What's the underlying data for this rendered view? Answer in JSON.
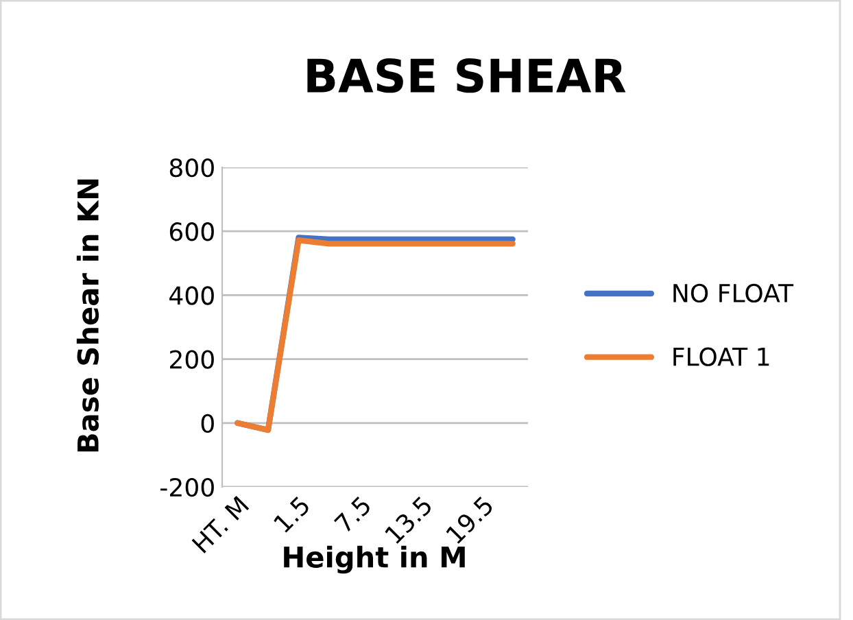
{
  "chart_data": {
    "type": "line",
    "title": "BASE SHEAR",
    "xlabel": "Height in M",
    "ylabel": "Base Shear in KN",
    "categories": [
      "HT. M",
      null,
      "1.5",
      null,
      "7.5",
      null,
      "13.5",
      null,
      "19.5",
      null
    ],
    "series": [
      {
        "name": "NO FLOAT",
        "color": "#4472c4",
        "values": [
          0,
          -22,
          580,
          575,
          575,
          575,
          575,
          575,
          575,
          575
        ]
      },
      {
        "name": "FLOAT 1",
        "color": "#ed7d31",
        "values": [
          0,
          -22,
          572,
          561,
          561,
          561,
          561,
          561,
          561,
          561
        ]
      }
    ],
    "ylim": [
      -200,
      800
    ],
    "yticks": [
      {
        "value": -200,
        "label": "-200"
      },
      0,
      200,
      400,
      600,
      800
    ],
    "grid": "y",
    "legend": "right",
    "marker": "none",
    "line_style": "solid"
  }
}
